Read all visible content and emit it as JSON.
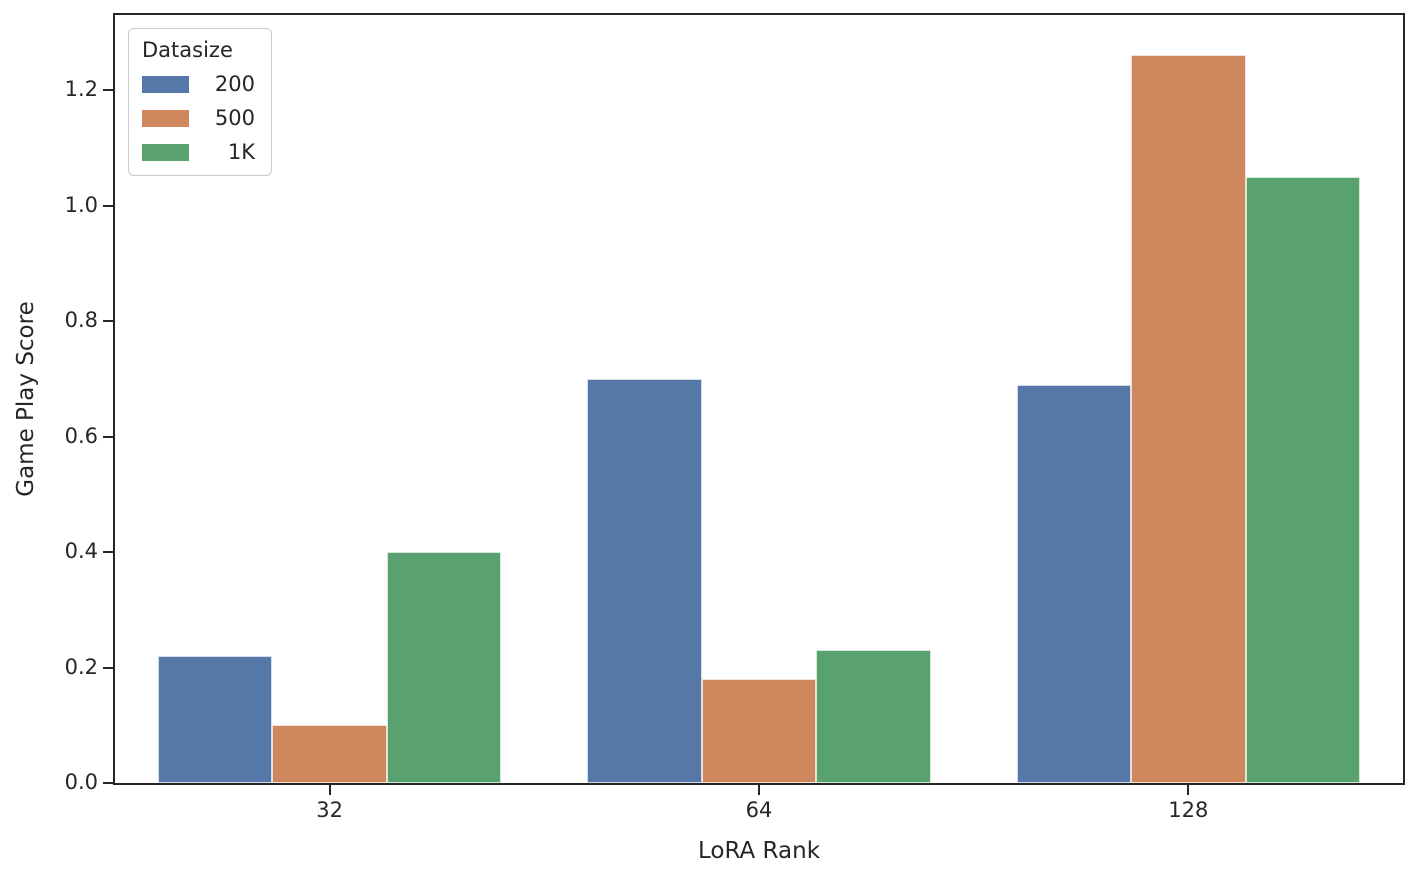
{
  "chart_data": {
    "type": "bar",
    "title": "",
    "xlabel": "LoRA Rank",
    "ylabel": "Game Play Score",
    "categories": [
      "32",
      "64",
      "128"
    ],
    "series": [
      {
        "name": "200",
        "color": "#5578A9",
        "values": [
          0.22,
          0.7,
          0.69
        ]
      },
      {
        "name": "500",
        "color": "#CF875E",
        "values": [
          0.1,
          0.18,
          1.26
        ]
      },
      {
        "name": "1K",
        "color": "#59A26F",
        "values": [
          0.4,
          0.23,
          1.05
        ]
      }
    ],
    "legend": {
      "title": "Datasize",
      "position": "upper left",
      "entries": [
        "200",
        "500",
        "1K"
      ]
    },
    "yticks": [
      "0.0",
      "0.2",
      "0.4",
      "0.6",
      "0.8",
      "1.0",
      "1.2"
    ],
    "ylim": [
      0,
      1.33
    ],
    "grid": false,
    "bar_group_width": 0.8,
    "axis_color": "#262626",
    "background_color": "#ffffff"
  }
}
